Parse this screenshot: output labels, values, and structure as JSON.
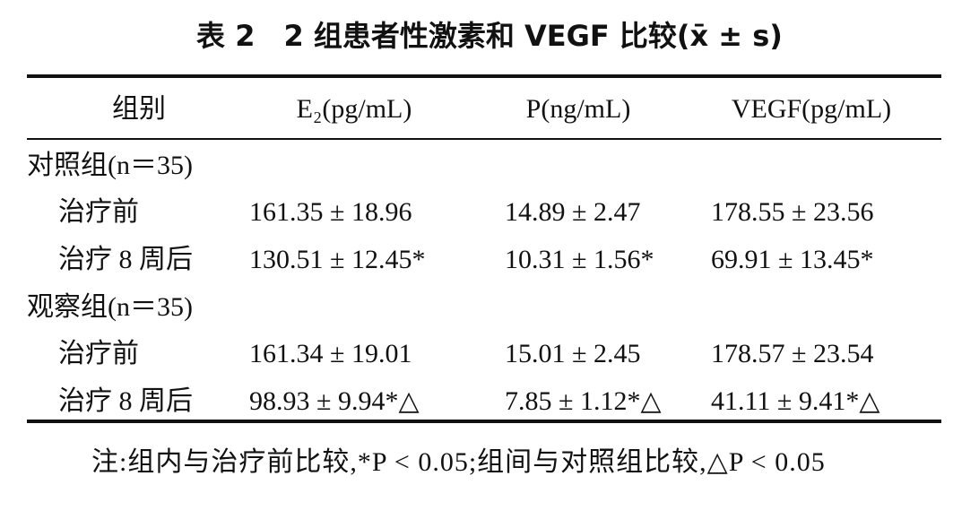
{
  "title": "表 2　2 组患者性激素和 VEGF 比较(x̄ ± s)",
  "table": {
    "headers": [
      "组别",
      "E₂(pg/mL)",
      "P(ng/mL)",
      "VEGF(pg/mL)"
    ],
    "groups": [
      {
        "label": "对照组(n＝35)",
        "rows": [
          [
            "治疗前",
            "161.35 ± 18.96",
            "14.89 ± 2.47",
            "178.55 ± 23.56"
          ],
          [
            "治疗 8 周后",
            "130.51 ± 12.45*",
            "10.31 ± 1.56*",
            "69.91 ± 13.45*"
          ]
        ]
      },
      {
        "label": "观察组(n＝35)",
        "rows": [
          [
            "治疗前",
            "161.34 ± 19.01",
            "15.01 ± 2.45",
            "178.57 ± 23.54"
          ],
          [
            "治疗 8 周后",
            "98.93 ± 9.94*△",
            "7.85 ± 1.12*△",
            "41.11 ± 9.41*△"
          ]
        ]
      }
    ]
  },
  "note": "注:组内与治疗前比较,*P < 0.05;组间与对照组比较,△P < 0.05"
}
